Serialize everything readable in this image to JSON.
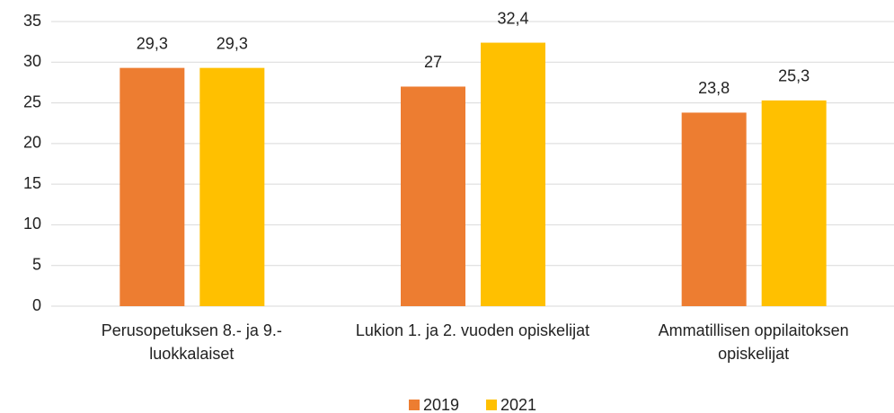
{
  "chart_data": {
    "type": "bar",
    "categories": [
      "Perusopetuksen 8.- ja 9.-luokkalaiset",
      "Lukion 1. ja 2. vuoden opiskelijat",
      "Ammatillisen oppilaitoksen opiskelijat"
    ],
    "series": [
      {
        "name": "2019",
        "color": "#ed7d31",
        "values": [
          29.3,
          27,
          23.8
        ],
        "value_labels": [
          "29,3",
          "27",
          "23,8"
        ]
      },
      {
        "name": "2021",
        "color": "#ffc000",
        "values": [
          29.3,
          32.4,
          25.3
        ],
        "value_labels": [
          "29,3",
          "32,4",
          "25,3"
        ]
      }
    ],
    "ylim": [
      0,
      35
    ],
    "yticks": [
      0,
      5,
      10,
      15,
      20,
      25,
      30,
      35
    ],
    "grid": true,
    "legend": "bottom"
  }
}
